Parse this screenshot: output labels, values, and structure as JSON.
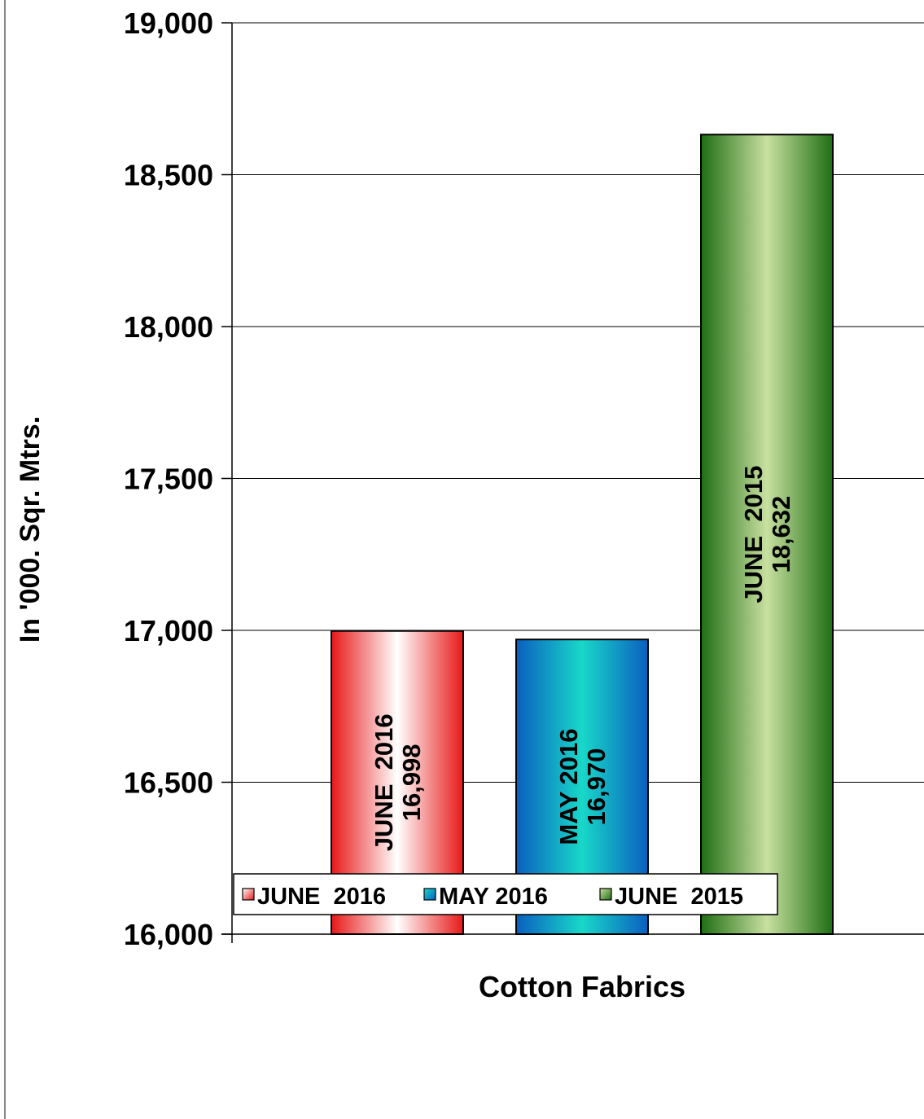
{
  "chart_data": {
    "type": "bar",
    "title": "",
    "xlabel": "",
    "ylabel": "In '000. Sqr. Mtrs.",
    "categories": [
      "Cotton Fabrics"
    ],
    "series": [
      {
        "name": "JUNE  2016",
        "values": [
          16998
        ],
        "value_label": "16,998",
        "color": "#ee2a2a"
      },
      {
        "name": "MAY 2016",
        "values": [
          16970
        ],
        "value_label": "16,970",
        "color": "#1a73cc"
      },
      {
        "name": "JUNE  2015",
        "values": [
          18632
        ],
        "value_label": "18,632",
        "color": "#2e7d20"
      }
    ],
    "ylim": [
      16000,
      19000
    ],
    "yticks": [
      16000,
      16500,
      17000,
      17500,
      18000,
      18500,
      19000
    ],
    "ytick_labels": [
      "16,000",
      "16,500",
      "17,000",
      "17,500",
      "18,000",
      "18,500",
      "19,000"
    ],
    "grid": true,
    "legend_position": "bottom"
  }
}
